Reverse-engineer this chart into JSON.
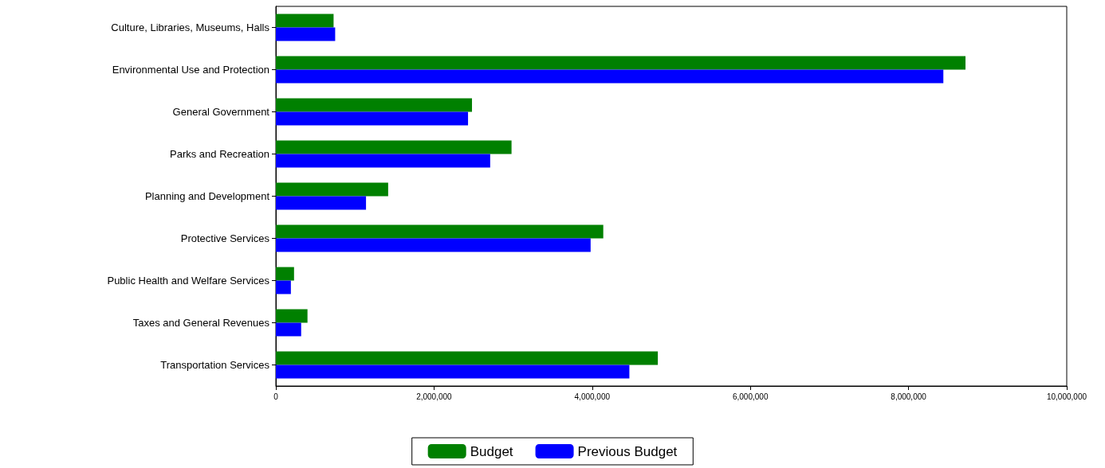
{
  "chart_data": {
    "type": "bar",
    "orientation": "horizontal",
    "categories": [
      "Culture, Libraries, Museums, Halls",
      "Environmental Use and Protection",
      "General Government",
      "Parks and Recreation",
      "Planning and Development",
      "Protective Services",
      "Public Health and Welfare Services",
      "Taxes and General Revenues",
      "Transportation Services"
    ],
    "series": [
      {
        "name": "Budget",
        "color": "#008000",
        "values": [
          730000,
          8720000,
          2480000,
          2980000,
          1420000,
          4140000,
          230000,
          400000,
          4830000
        ]
      },
      {
        "name": "Previous Budget",
        "color": "#0000ff",
        "values": [
          750000,
          8440000,
          2430000,
          2710000,
          1140000,
          3980000,
          190000,
          320000,
          4470000
        ]
      }
    ],
    "xlim": [
      0,
      10000000
    ],
    "xticks": [
      0,
      {
        "value": 2000000,
        "label": "2,000,000"
      },
      {
        "value": 4000000,
        "label": "4,000,000"
      },
      {
        "value": 6000000,
        "label": "6,000,000"
      },
      {
        "value": 8000000,
        "label": "8,000,000"
      },
      {
        "value": 10000000,
        "label": "10,000,000"
      }
    ],
    "grid": false,
    "legend": "bottom"
  }
}
